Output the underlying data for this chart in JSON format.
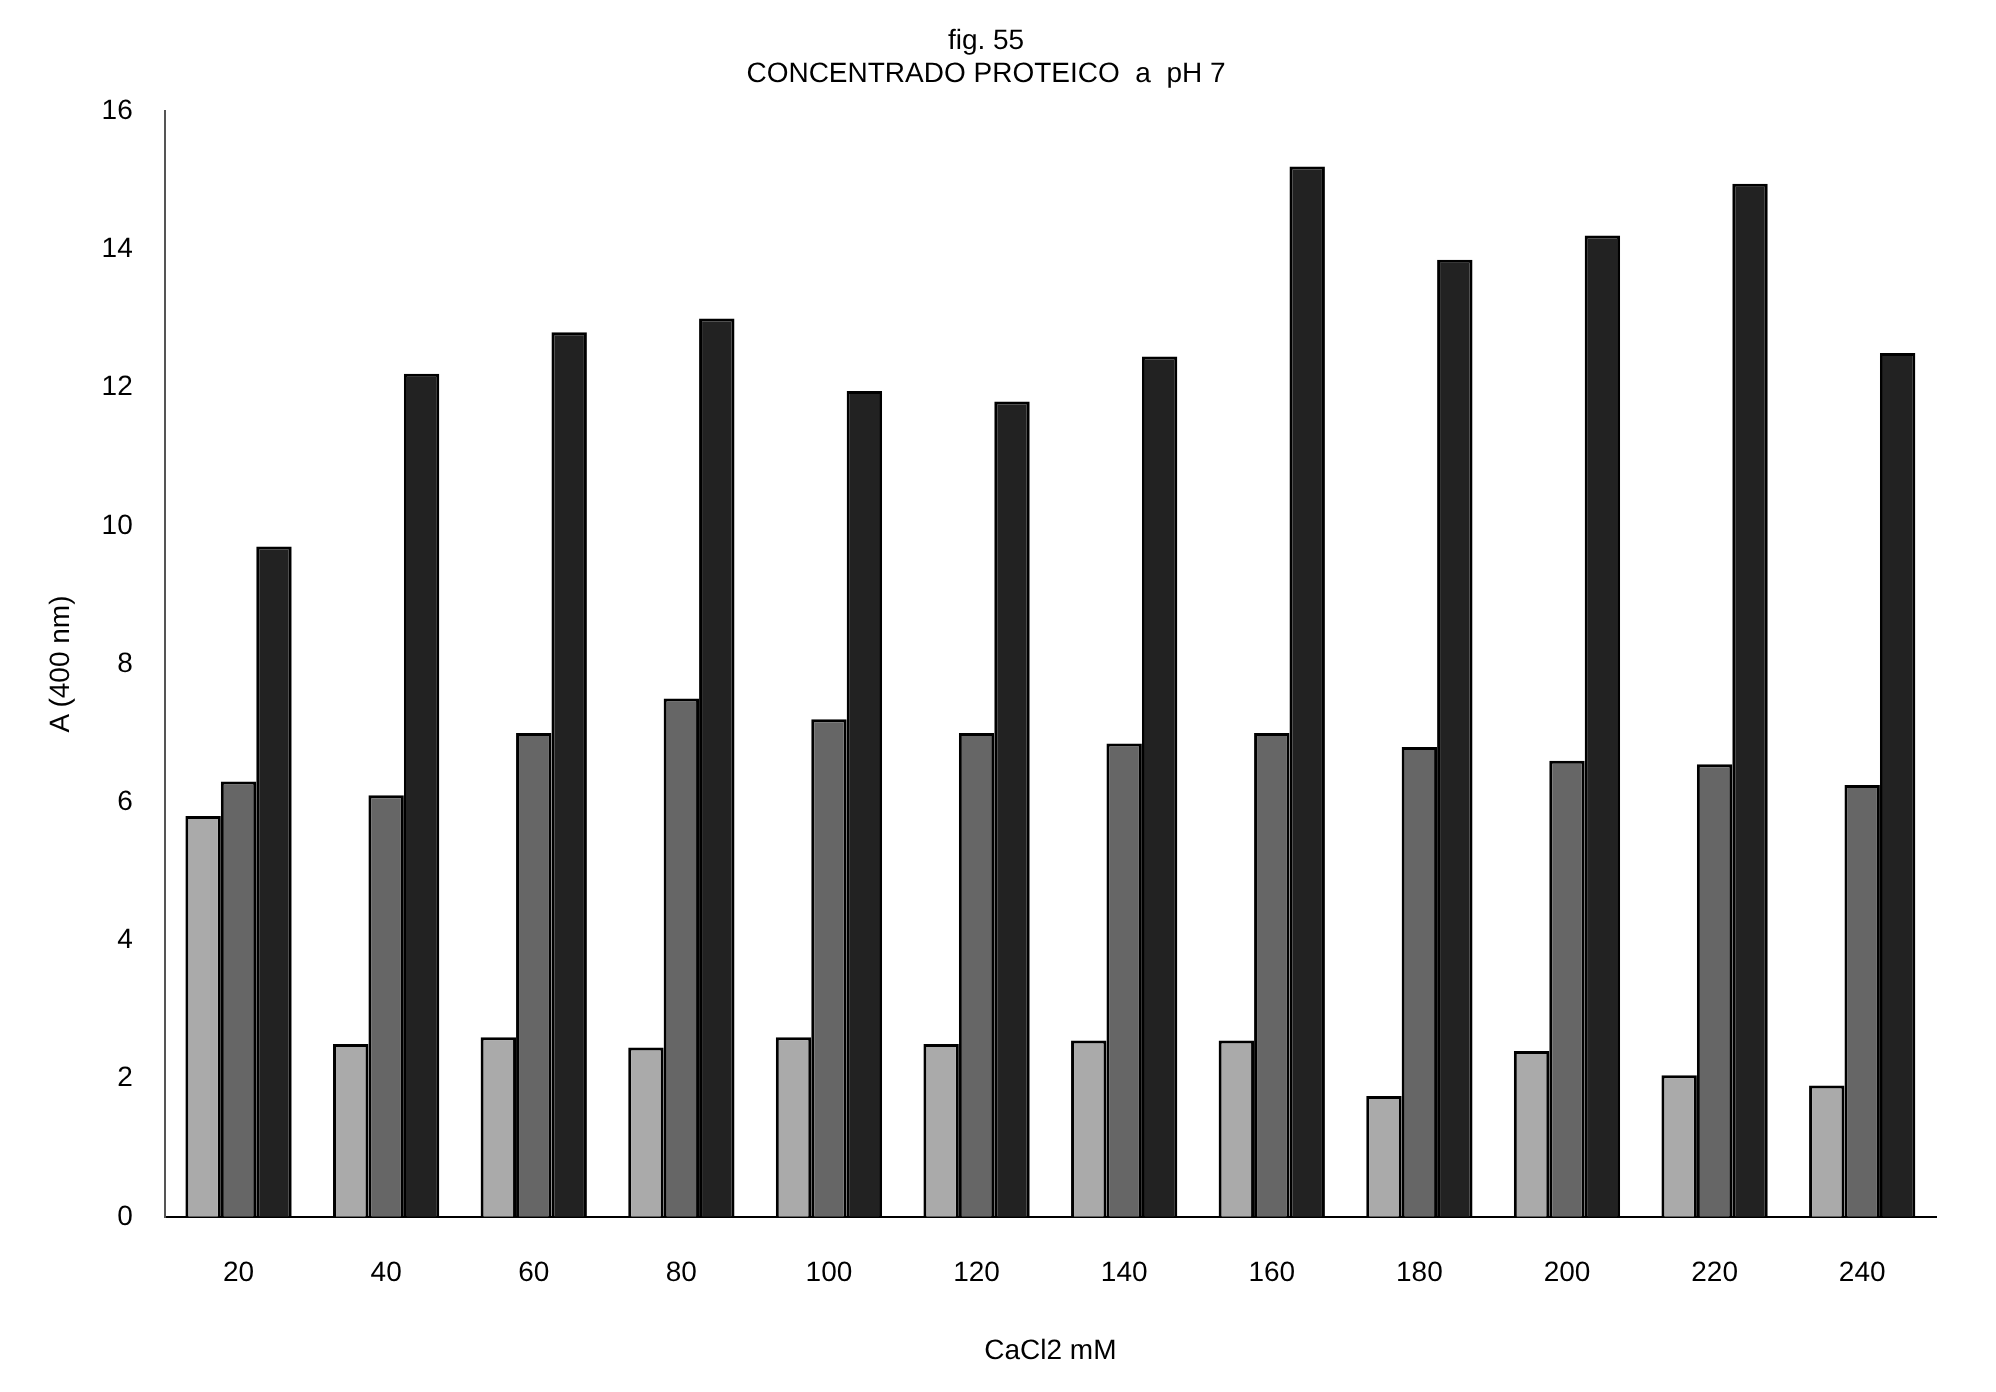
{
  "chart_data": {
    "type": "bar",
    "title": "fig. 55",
    "subtitle": "CONCENTRADO PROTEICO  a  pH 7",
    "xlabel": "CaCl2 mM",
    "ylabel": "A (400 nm)",
    "categories": [
      "20",
      "40",
      "60",
      "80",
      "100",
      "120",
      "140",
      "160",
      "180",
      "200",
      "220",
      "240"
    ],
    "series": [
      {
        "color": "#aaaaaa",
        "values": [
          5.8,
          2.5,
          2.6,
          2.45,
          2.6,
          2.5,
          2.55,
          2.55,
          1.75,
          2.4,
          2.05,
          1.9
        ]
      },
      {
        "color": "#666666",
        "values": [
          6.3,
          6.1,
          7.0,
          7.5,
          7.2,
          7.0,
          6.85,
          7.0,
          6.8,
          6.6,
          6.55,
          6.25
        ]
      },
      {
        "color": "#222222",
        "values": [
          9.7,
          12.2,
          12.8,
          13.0,
          11.95,
          11.8,
          12.45,
          15.2,
          13.85,
          14.2,
          14.95,
          12.5
        ]
      }
    ],
    "ylim": [
      0,
      16
    ],
    "yticks": [
      0,
      2,
      4,
      6,
      8,
      10,
      12,
      14,
      16
    ],
    "grid": false,
    "legend": false
  }
}
